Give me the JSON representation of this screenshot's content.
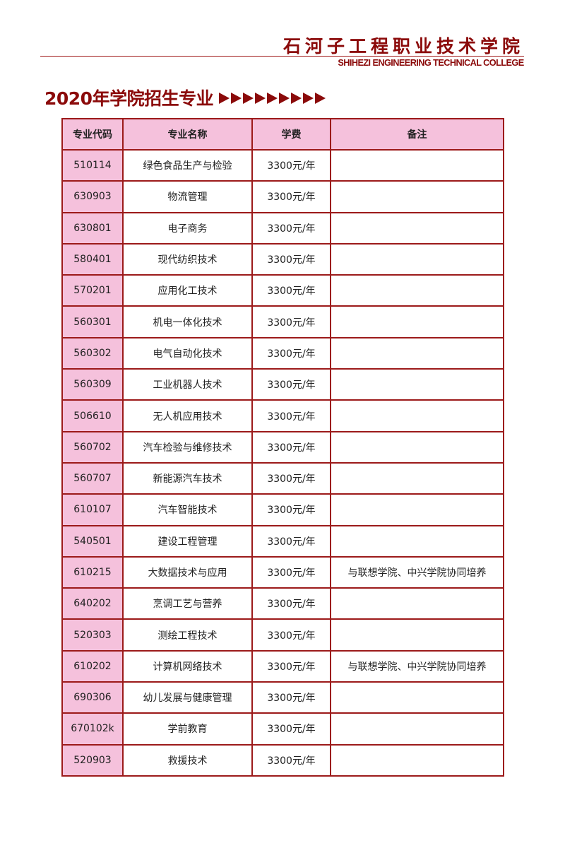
{
  "header": {
    "college_cn": "石河子工程职业技术学院",
    "college_en": "SHIHEZI ENGINEERING TECHNICAL COLLEGE"
  },
  "page_title": "2020年学院招生专业",
  "colors": {
    "accent": "#8b0a0a",
    "header_fill": "#f5c1dc",
    "border": "#9c1a1a"
  },
  "table": {
    "columns": [
      "专业代码",
      "专业名称",
      "学费",
      "备注"
    ],
    "rows": [
      {
        "code": "510114",
        "name": "绿色食品生产与检验",
        "fee": "3300元/年",
        "note": ""
      },
      {
        "code": "630903",
        "name": "物流管理",
        "fee": "3300元/年",
        "note": ""
      },
      {
        "code": "630801",
        "name": "电子商务",
        "fee": "3300元/年",
        "note": ""
      },
      {
        "code": "580401",
        "name": "现代纺织技术",
        "fee": "3300元/年",
        "note": ""
      },
      {
        "code": "570201",
        "name": "应用化工技术",
        "fee": "3300元/年",
        "note": ""
      },
      {
        "code": "560301",
        "name": "机电一体化技术",
        "fee": "3300元/年",
        "note": ""
      },
      {
        "code": "560302",
        "name": "电气自动化技术",
        "fee": "3300元/年",
        "note": ""
      },
      {
        "code": "560309",
        "name": "工业机器人技术",
        "fee": "3300元/年",
        "note": ""
      },
      {
        "code": "506610",
        "name": "无人机应用技术",
        "fee": "3300元/年",
        "note": ""
      },
      {
        "code": "560702",
        "name": "汽车检验与维修技术",
        "fee": "3300元/年",
        "note": ""
      },
      {
        "code": "560707",
        "name": "新能源汽车技术",
        "fee": "3300元/年",
        "note": ""
      },
      {
        "code": "610107",
        "name": "汽车智能技术",
        "fee": "3300元/年",
        "note": ""
      },
      {
        "code": "540501",
        "name": "建设工程管理",
        "fee": "3300元/年",
        "note": ""
      },
      {
        "code": "610215",
        "name": "大数据技术与应用",
        "fee": "3300元/年",
        "note": "与联想学院、中兴学院协同培养"
      },
      {
        "code": "640202",
        "name": "烹调工艺与营养",
        "fee": "3300元/年",
        "note": ""
      },
      {
        "code": "520303",
        "name": "测绘工程技术",
        "fee": "3300元/年",
        "note": ""
      },
      {
        "code": "610202",
        "name": "计算机网络技术",
        "fee": "3300元/年",
        "note": "与联想学院、中兴学院协同培养"
      },
      {
        "code": "690306",
        "name": "幼儿发展与健康管理",
        "fee": "3300元/年",
        "note": ""
      },
      {
        "code": "670102k",
        "name": "学前教育",
        "fee": "3300元/年",
        "note": ""
      },
      {
        "code": "520903",
        "name": "救援技术",
        "fee": "3300元/年",
        "note": ""
      }
    ]
  }
}
